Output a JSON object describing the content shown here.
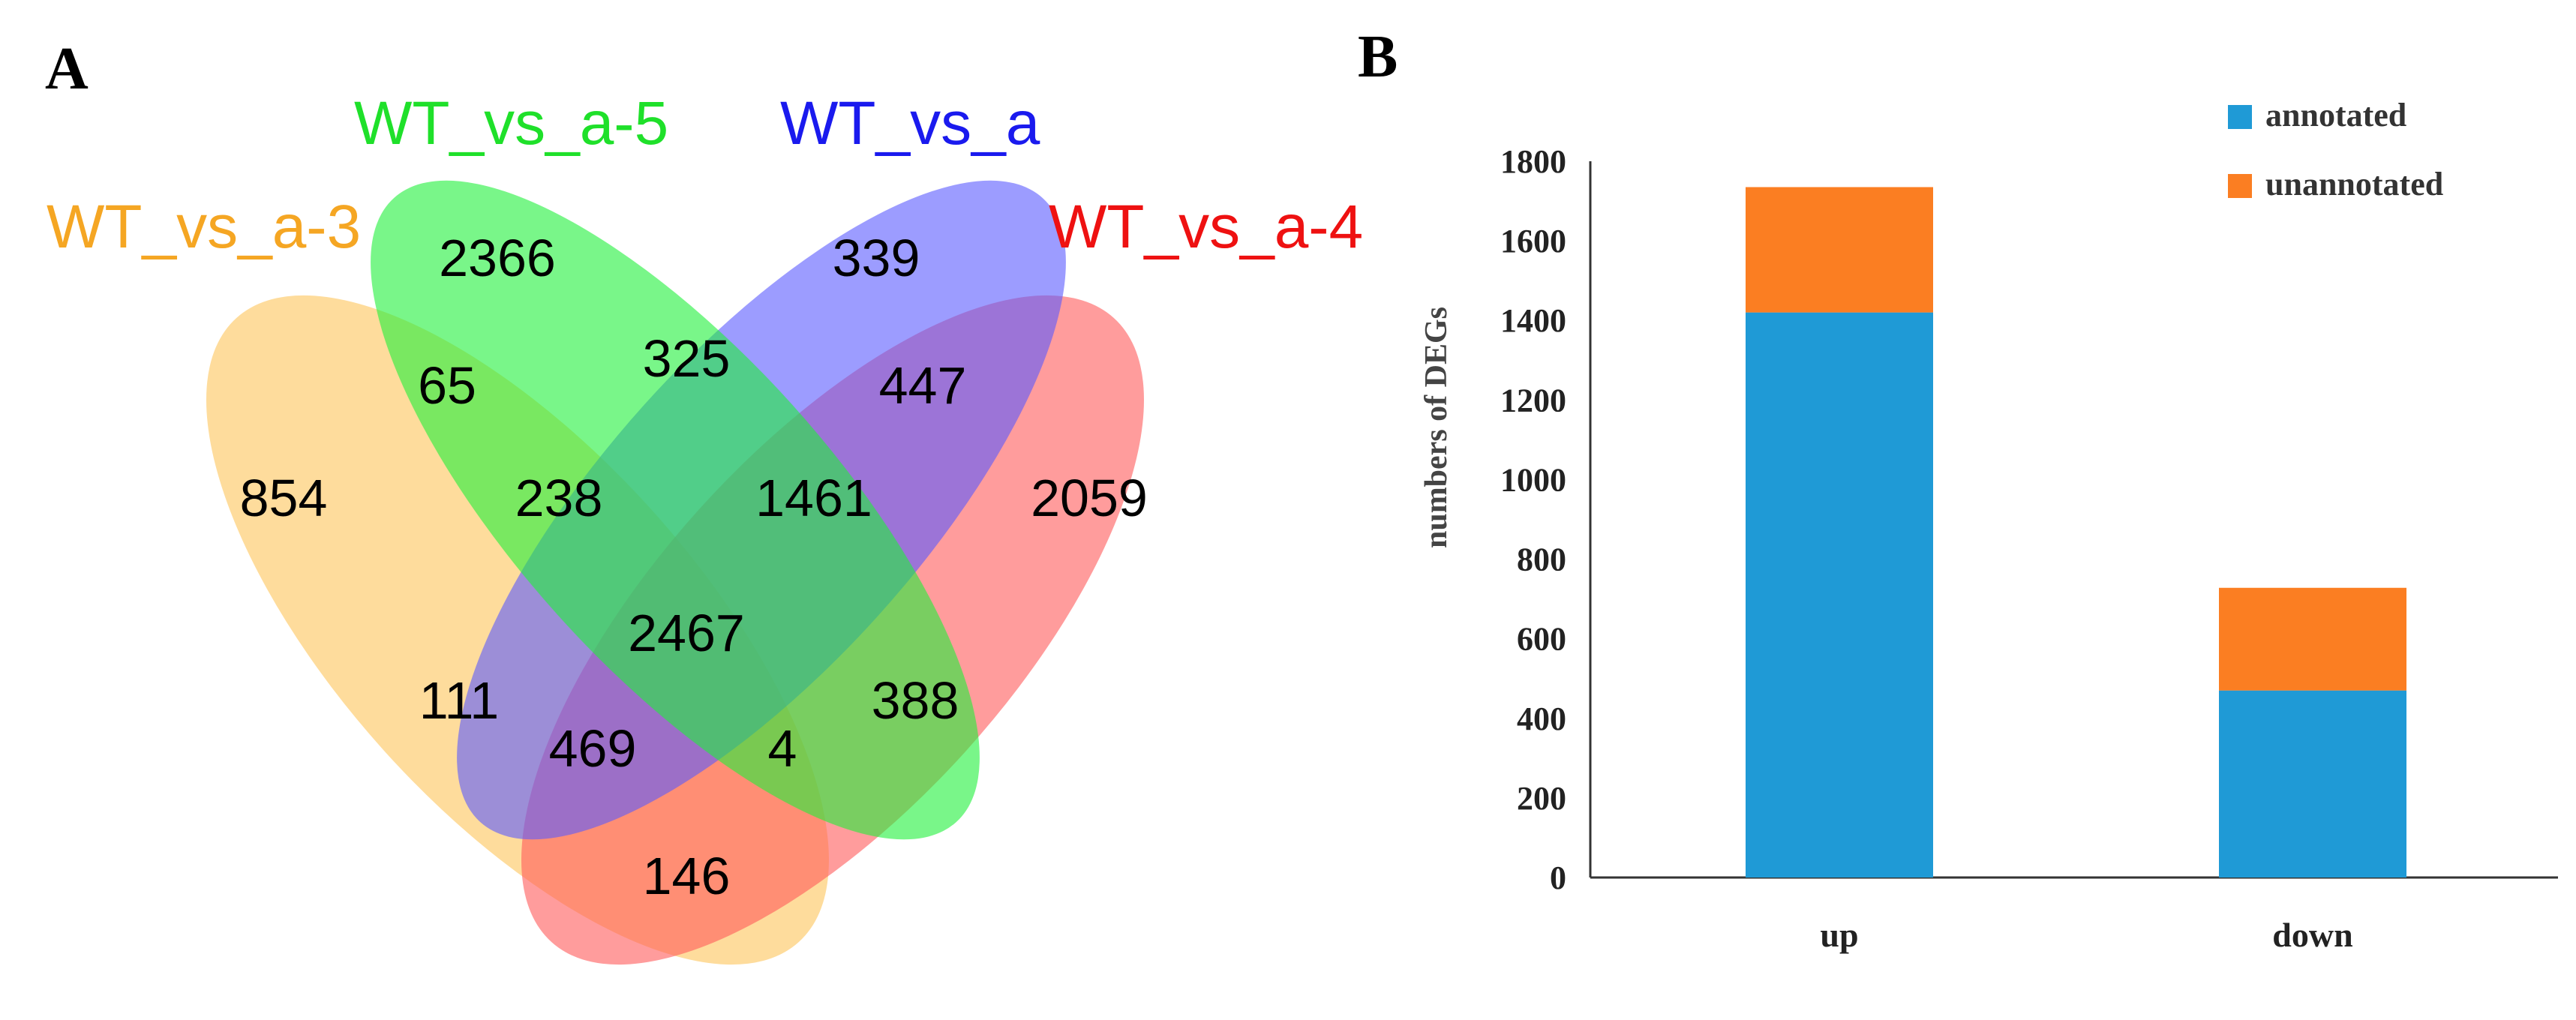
{
  "panels": {
    "a_letter": "A",
    "b_letter": "B"
  },
  "chart_data": [
    {
      "type": "venn",
      "panel": "A",
      "sets": [
        {
          "name": "WT_vs_a-3",
          "color": "#f5a623",
          "fill": "#fdc55a"
        },
        {
          "name": "WT_vs_a-5",
          "color": "#1fe02a",
          "fill": "#1ff03a"
        },
        {
          "name": "WT_vs_a",
          "color": "#1a1aee",
          "fill": "#5a5aff"
        },
        {
          "name": "WT_vs_a-4",
          "color": "#ee1111",
          "fill": "#ff5a5a"
        }
      ],
      "regions": [
        {
          "sets": [
            "WT_vs_a-5"
          ],
          "value": 2366
        },
        {
          "sets": [
            "WT_vs_a"
          ],
          "value": 339
        },
        {
          "sets": [
            "WT_vs_a-3",
            "WT_vs_a-5"
          ],
          "value": 65
        },
        {
          "sets": [
            "WT_vs_a-5",
            "WT_vs_a"
          ],
          "value": 325
        },
        {
          "sets": [
            "WT_vs_a",
            "WT_vs_a-4"
          ],
          "value": 447
        },
        {
          "sets": [
            "WT_vs_a-3"
          ],
          "value": 854
        },
        {
          "sets": [
            "WT_vs_a-3",
            "WT_vs_a-5",
            "WT_vs_a"
          ],
          "value": 238
        },
        {
          "sets": [
            "WT_vs_a-5",
            "WT_vs_a",
            "WT_vs_a-4"
          ],
          "value": 1461
        },
        {
          "sets": [
            "WT_vs_a-4"
          ],
          "value": 2059
        },
        {
          "sets": [
            "WT_vs_a-3",
            "WT_vs_a-5",
            "WT_vs_a",
            "WT_vs_a-4"
          ],
          "value": 2467
        },
        {
          "sets": [
            "WT_vs_a-3",
            "WT_vs_a"
          ],
          "value": 111
        },
        {
          "sets": [
            "WT_vs_a-5",
            "WT_vs_a-4"
          ],
          "value": 388
        },
        {
          "sets": [
            "WT_vs_a-3",
            "WT_vs_a",
            "WT_vs_a-4"
          ],
          "value": 469
        },
        {
          "sets": [
            "WT_vs_a-3",
            "WT_vs_a-5",
            "WT_vs_a-4"
          ],
          "value": 4
        },
        {
          "sets": [
            "WT_vs_a-3",
            "WT_vs_a-4"
          ],
          "value": 146
        }
      ]
    },
    {
      "type": "bar",
      "stacked": true,
      "panel": "B",
      "categories": [
        "up",
        "down"
      ],
      "series": [
        {
          "name": "annotated",
          "color": "#1f9ad6",
          "values": [
            1420,
            470
          ]
        },
        {
          "name": "unannotated",
          "color": "#fb7e22",
          "values": [
            315,
            258
          ]
        }
      ],
      "ylabel": "numbers of DEGs",
      "xlabel": "",
      "ylim": [
        0,
        1800
      ],
      "yticks": [
        "0",
        "200",
        "400",
        "600",
        "800",
        "1000",
        "1200",
        "1400",
        "1600",
        "1800"
      ],
      "legend_position": "top-right",
      "grid": false
    }
  ]
}
